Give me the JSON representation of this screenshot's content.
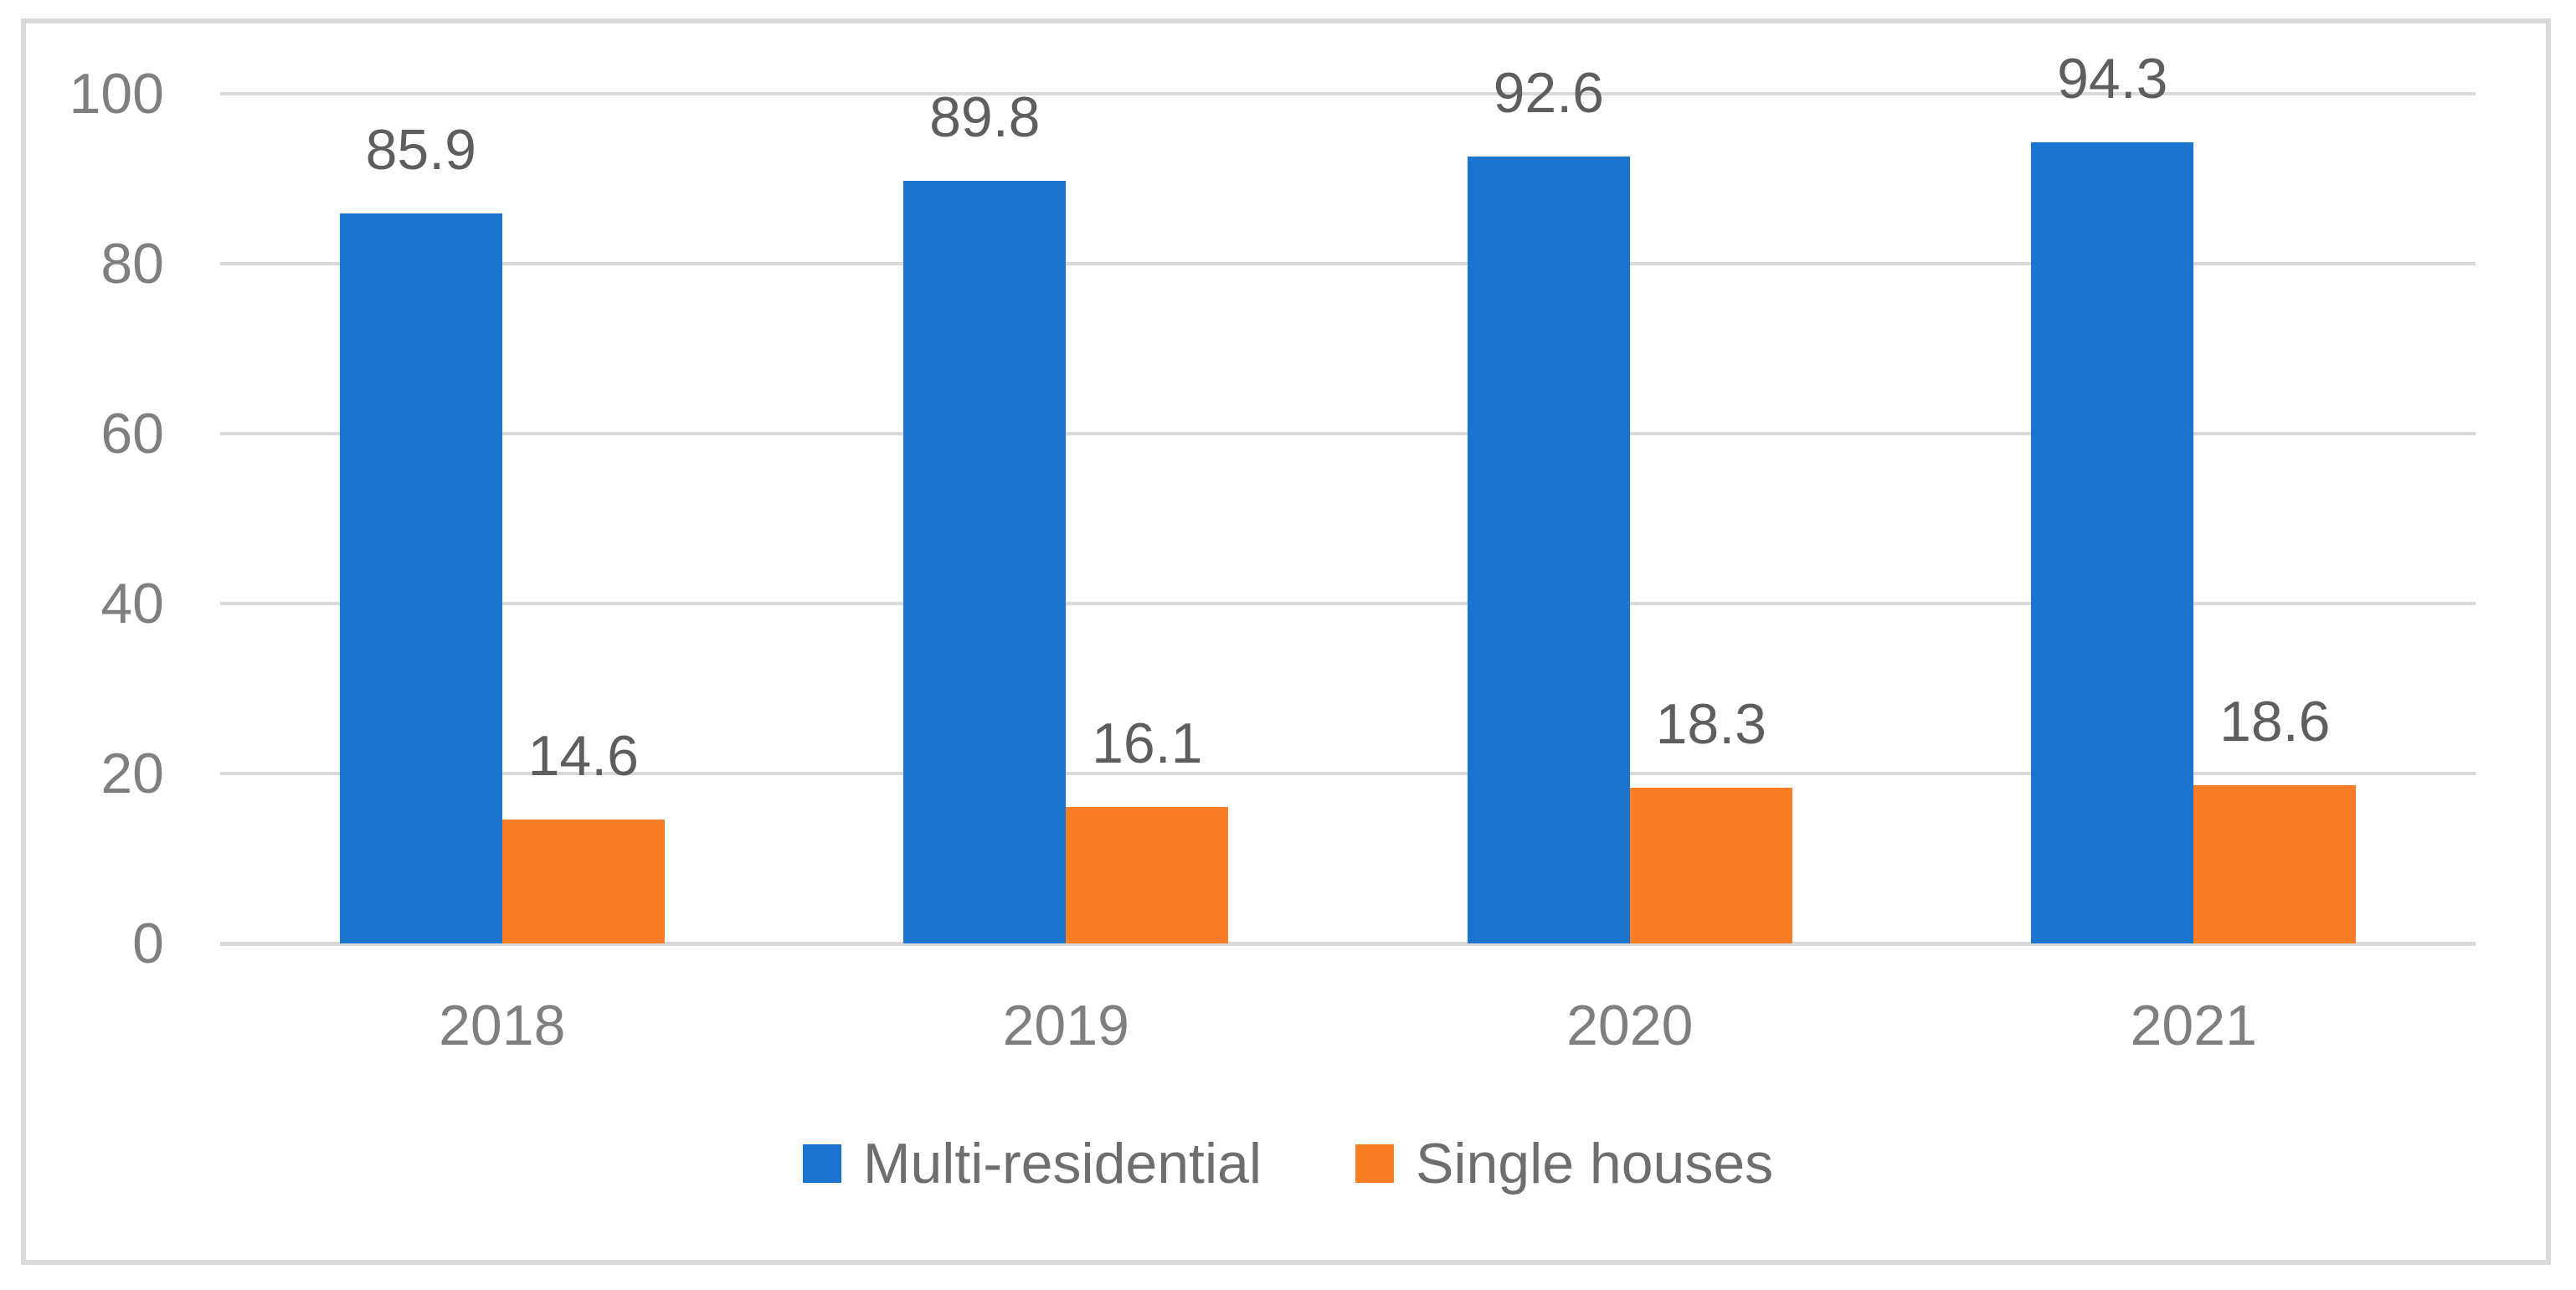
{
  "colors": {
    "series_blue": "#1B74CE",
    "series_orange": "#FB7D26",
    "gridline": "#D9D9D9",
    "axis_line": "#D9D9D9",
    "chart_border": "#D9D9D9",
    "tick_text": "#7F7F7F",
    "category_text": "#7F7F7F",
    "data_label_text": "#5E5E5E",
    "legend_text": "#6E6E6E"
  },
  "chart_data": {
    "type": "bar",
    "title": "",
    "xlabel": "",
    "ylabel": "",
    "categories": [
      "2018",
      "2019",
      "2020",
      "2021"
    ],
    "series": [
      {
        "name": "Multi-residential",
        "color_key": "series_blue",
        "values": [
          85.9,
          89.8,
          92.6,
          94.3
        ]
      },
      {
        "name": "Single houses",
        "color_key": "series_orange",
        "values": [
          14.6,
          16.1,
          18.3,
          18.6
        ]
      }
    ],
    "ylim": [
      0,
      100
    ],
    "y_ticks": [
      0,
      20,
      40,
      60,
      80,
      100
    ],
    "grid": true,
    "legend_position": "bottom",
    "data_labels": true,
    "value_decimals": 1
  }
}
